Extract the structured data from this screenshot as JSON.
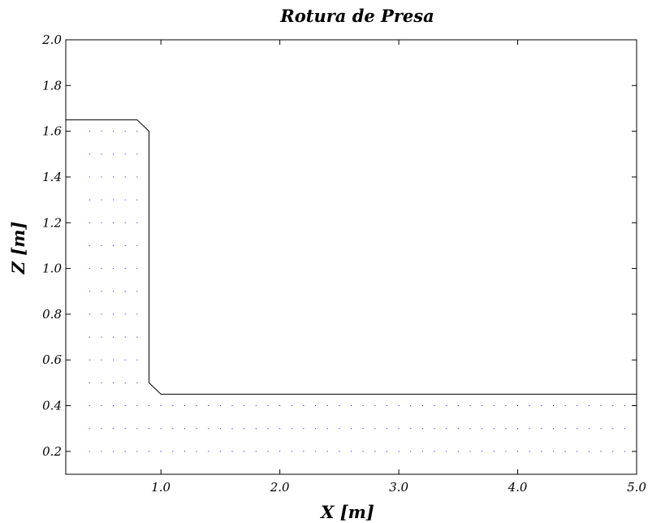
{
  "chart_data": {
    "type": "line",
    "title": "Rotura de Presa",
    "xlabel": "X [m]",
    "ylabel": "Z [m]",
    "xlim": [
      0.2,
      5.0
    ],
    "ylim": [
      0.1,
      2.0
    ],
    "x_ticks": [
      1.0,
      2.0,
      3.0,
      4.0,
      5.0
    ],
    "x_tick_labels": [
      "1.0",
      "2.0",
      "3.0",
      "4.0",
      "5.0"
    ],
    "y_ticks": [
      0.2,
      0.4,
      0.6,
      0.8,
      1.0,
      1.2,
      1.4,
      1.6,
      1.8,
      2.0
    ],
    "y_tick_labels": [
      "0.2",
      "0.4",
      "0.6",
      "0.8",
      "1.0",
      "1.2",
      "1.4",
      "1.6",
      "1.8",
      "2.0"
    ],
    "grid": false,
    "series": [
      {
        "type": "line",
        "color": "#000000",
        "x": [
          0.2,
          0.8,
          0.9,
          0.9,
          1.0,
          5.0
        ],
        "z": [
          1.65,
          1.65,
          1.6,
          0.5,
          0.45,
          0.45
        ]
      },
      {
        "type": "scatter",
        "color": "#0000ff",
        "x_start": 0.4,
        "x_step": 0.1,
        "z_start": 0.1,
        "z_step": 0.1,
        "dam_x_max": 0.9,
        "dam_z_max": 1.6,
        "tail_x_max": 4.9,
        "tail_z_max": 0.4
      }
    ]
  }
}
